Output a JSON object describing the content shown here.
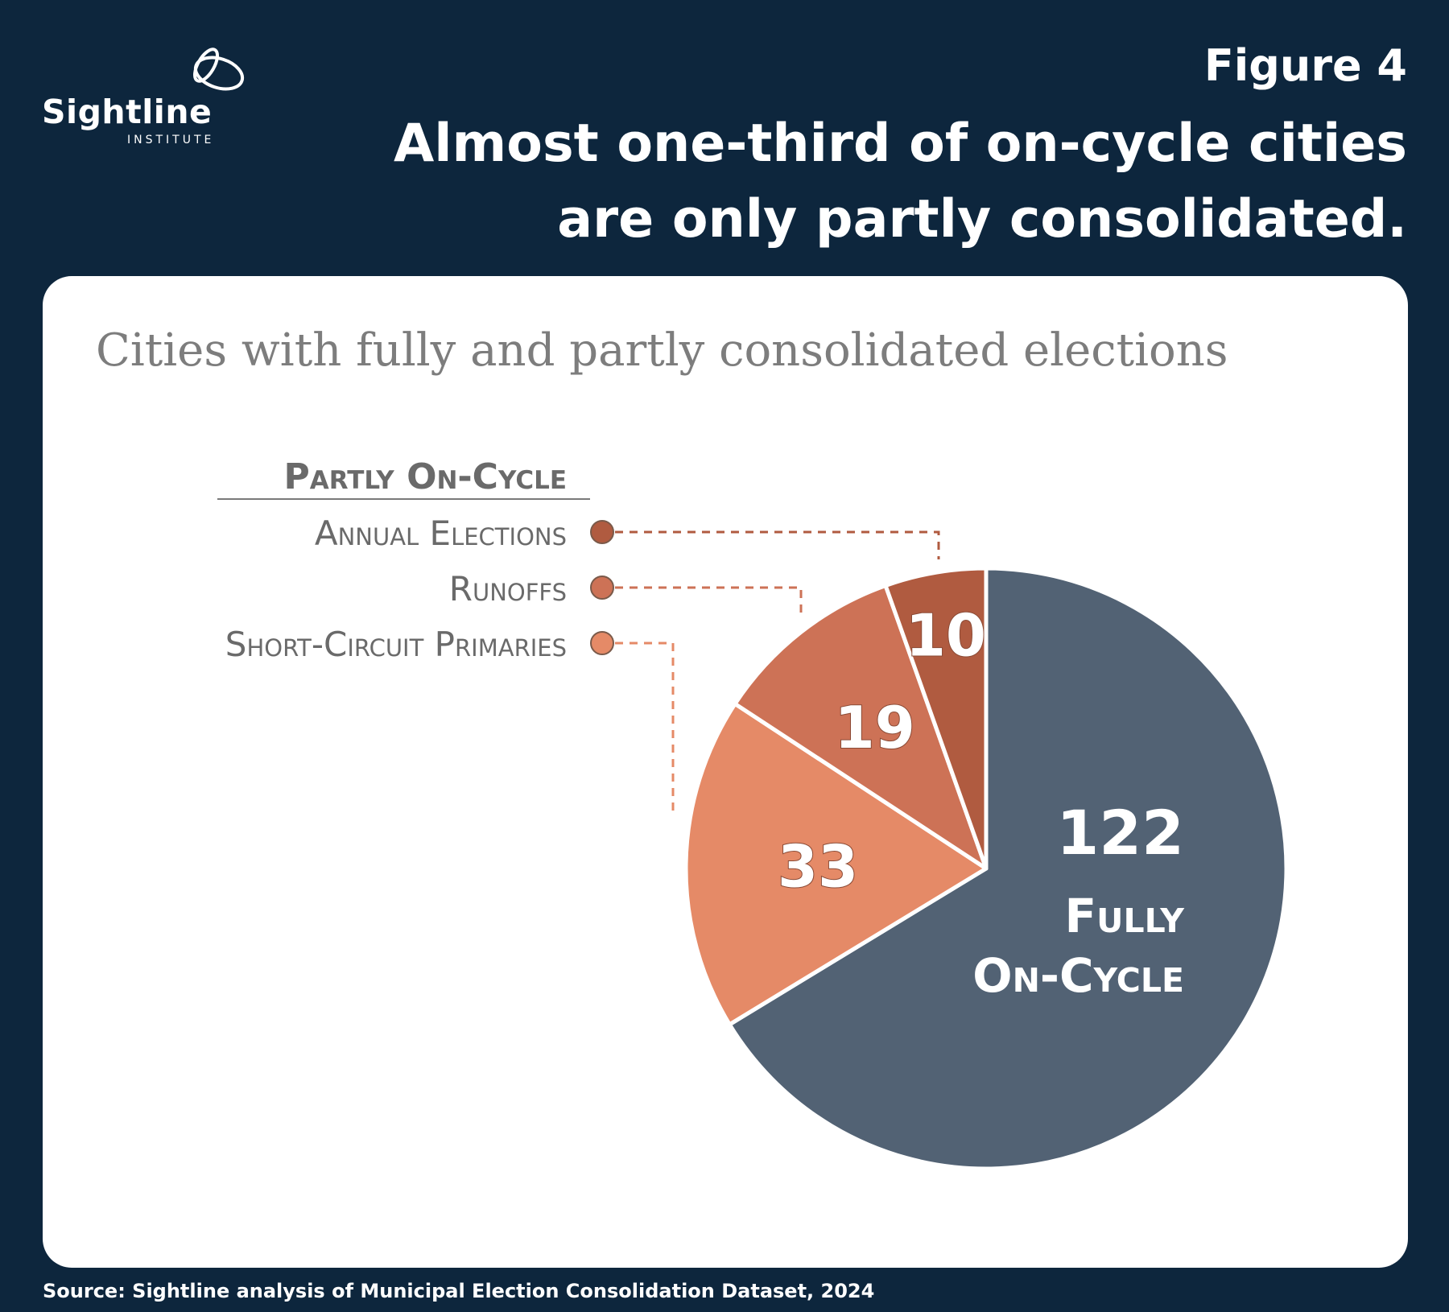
{
  "logo": {
    "name": "Sightline",
    "subtitle": "INSTITUTE"
  },
  "figure_label": "Figure 4",
  "headline": "Almost one-third of on-cycle cities are only partly consolidated.",
  "source": "Source: Sightline analysis of Municipal Election Consolidation Dataset, 2024",
  "chart_data": {
    "type": "pie",
    "title": "Cities with fully and partly consolidated elections",
    "legend_heading": "Partly On-Cycle",
    "legend_placement": "top-left",
    "slices": [
      {
        "label": "Fully On-Cycle",
        "value": 122,
        "color": "#526274"
      },
      {
        "label": "Short-Circuit Primaries",
        "value": 33,
        "color": "#e58a67"
      },
      {
        "label": "Runoffs",
        "value": 19,
        "color": "#cd7256"
      },
      {
        "label": "Annual Elections",
        "value": 10,
        "color": "#b05b40"
      }
    ]
  }
}
